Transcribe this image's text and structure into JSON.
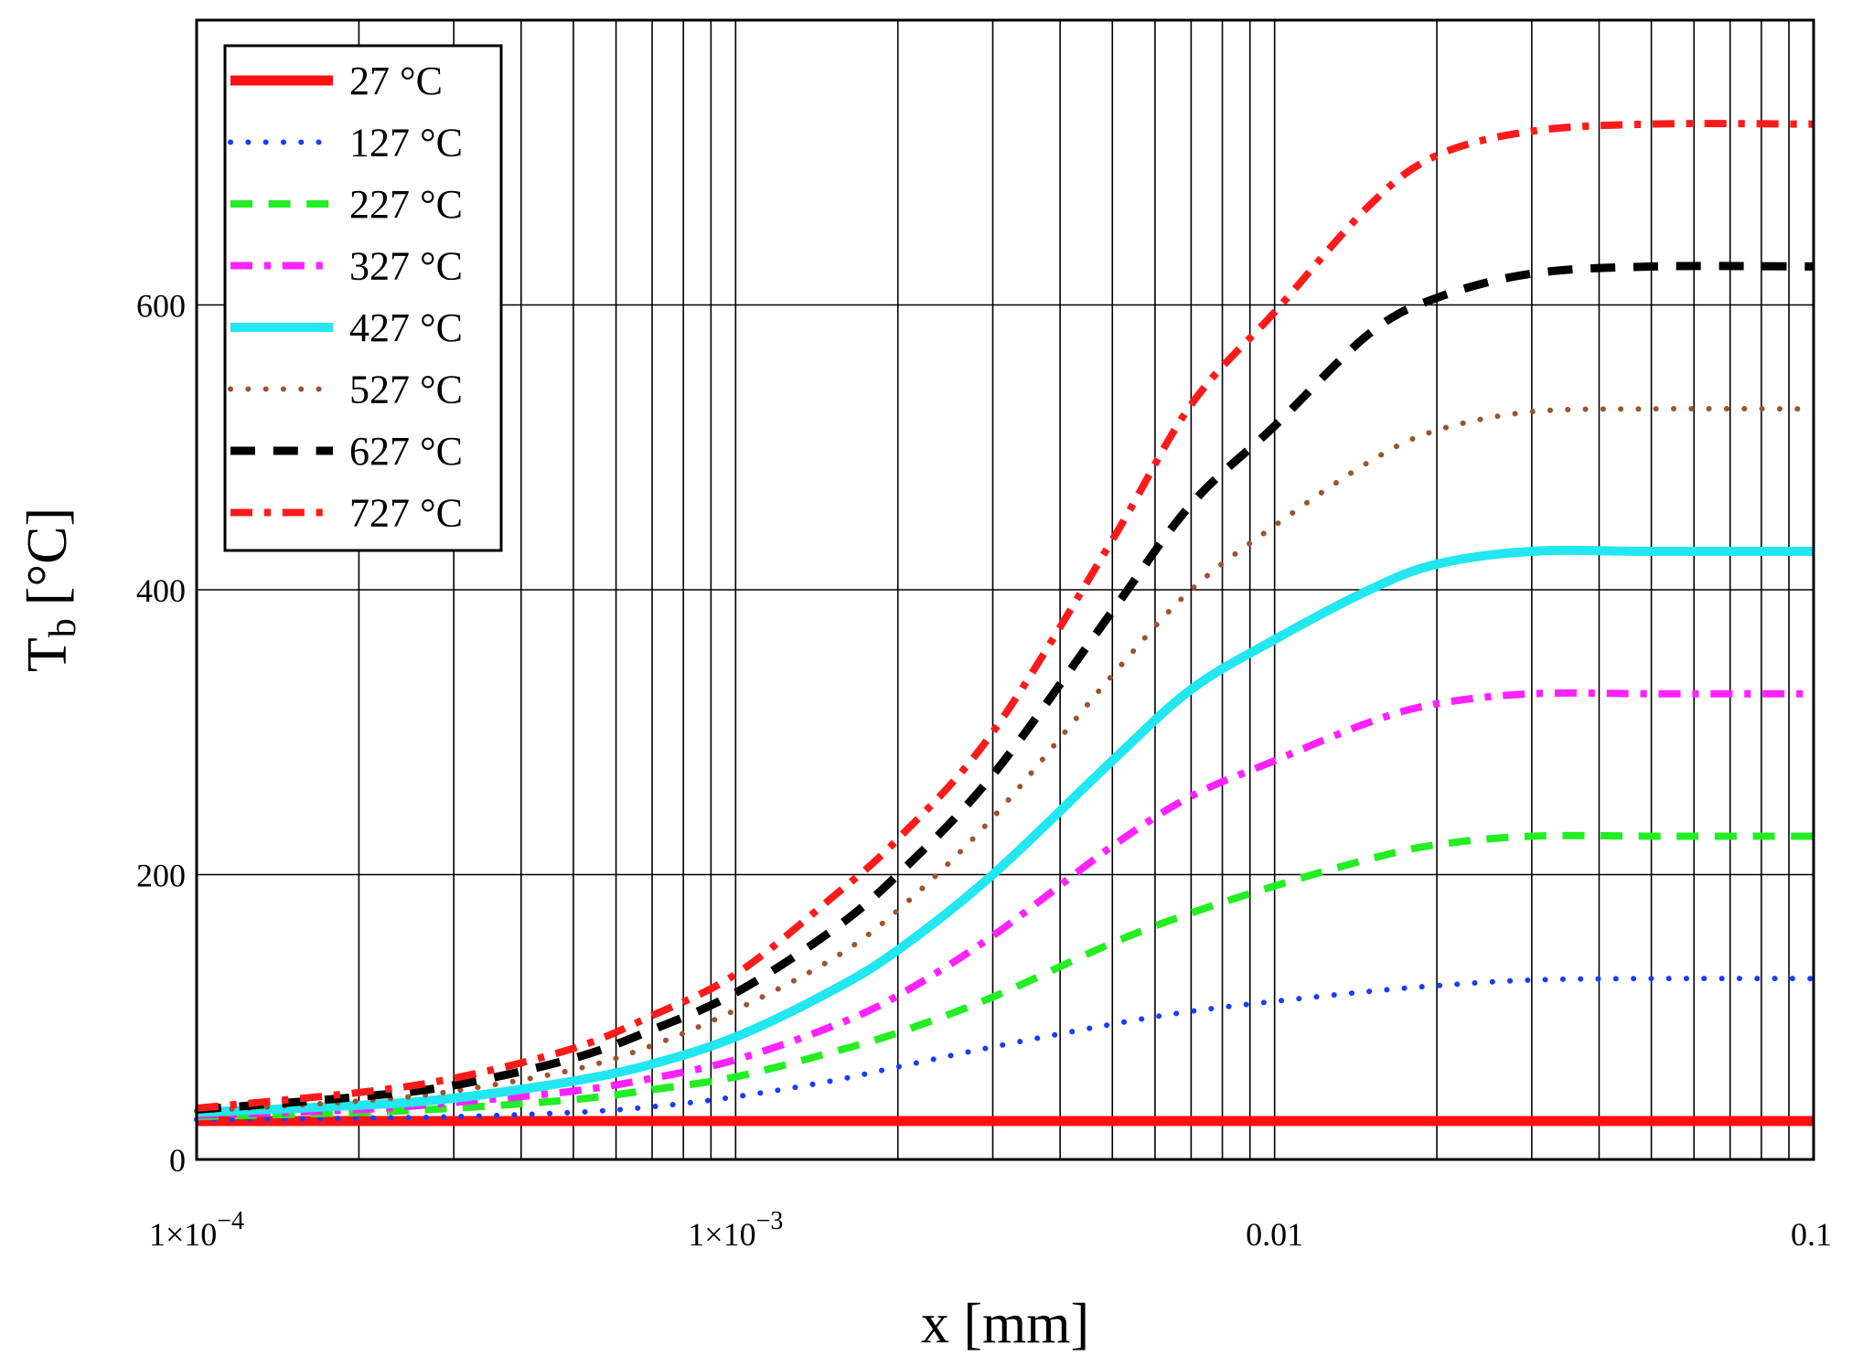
{
  "chart_data": {
    "type": "line",
    "title": "",
    "xlabel": "x [mm]",
    "ylabel": "T",
    "ylabel_subscript": "b",
    "ylabel_unit": "[°C]",
    "x_scale": "log",
    "xlim": [
      0.0001,
      0.1
    ],
    "ylim": [
      0,
      800
    ],
    "x_ticks": [
      {
        "value": 0.0001,
        "base": "1×10",
        "exp": "−4"
      },
      {
        "value": 0.001,
        "base": "1×10",
        "exp": "−3"
      },
      {
        "value": 0.01,
        "base": "0.01",
        "exp": ""
      },
      {
        "value": 0.1,
        "base": "0.1",
        "exp": ""
      }
    ],
    "y_ticks": [
      0,
      200,
      400,
      600
    ],
    "grid": true,
    "legend_position": "top-left",
    "x": [
      0.0001,
      0.0002,
      0.0003,
      0.0005,
      0.0007,
      0.001,
      0.0015,
      0.002,
      0.003,
      0.005,
      0.007,
      0.01,
      0.015,
      0.02,
      0.03,
      0.05,
      0.1
    ],
    "series": [
      {
        "name": "27 °C",
        "color": "#ff1010",
        "style": "solid",
        "width": 11,
        "values": [
          27,
          27,
          27,
          27,
          27,
          27,
          27,
          27,
          27,
          27,
          27,
          27,
          27,
          27,
          27,
          27,
          27
        ]
      },
      {
        "name": "127 °C",
        "color": "#1a3cff",
        "style": "dotted",
        "width": 6,
        "values": [
          28,
          29,
          30,
          33,
          37,
          44,
          55,
          65,
          79,
          95,
          104,
          111,
          118,
          122,
          126,
          127,
          127
        ]
      },
      {
        "name": "227 °C",
        "color": "#22ee22",
        "style": "dashed",
        "width": 8,
        "values": [
          30,
          33,
          36,
          42,
          49,
          58,
          75,
          89,
          114,
          152,
          173,
          192,
          211,
          221,
          227,
          227,
          227
        ]
      },
      {
        "name": "327 °C",
        "color": "#ff22ff",
        "style": "dashdot",
        "width": 8,
        "values": [
          31,
          35,
          40,
          48,
          57,
          70,
          93,
          115,
          157,
          220,
          255,
          280,
          307,
          320,
          327,
          327,
          327
        ]
      },
      {
        "name": "427 °C",
        "color": "#22e6f0",
        "style": "solid",
        "width": 10,
        "values": [
          33,
          38,
          43,
          55,
          67,
          86,
          118,
          147,
          200,
          280,
          330,
          365,
          400,
          418,
          427,
          427,
          427
        ]
      },
      {
        "name": "527 °C",
        "color": "#a0522d",
        "style": "dotted",
        "width": 6,
        "values": [
          34,
          41,
          48,
          63,
          80,
          105,
          140,
          175,
          240,
          340,
          400,
          445,
          490,
          512,
          525,
          527,
          527
        ]
      },
      {
        "name": "627 °C",
        "color": "#000000",
        "style": "dashed",
        "width": 9,
        "values": [
          35,
          44,
          52,
          71,
          91,
          117,
          160,
          200,
          270,
          385,
          460,
          515,
          580,
          605,
          622,
          627,
          627
        ]
      },
      {
        "name": "727 °C",
        "color": "#ff1a1a",
        "style": "dashdot",
        "width": 8,
        "values": [
          36,
          47,
          57,
          78,
          101,
          130,
          183,
          225,
          300,
          435,
          530,
          595,
          670,
          705,
          722,
          727,
          727
        ]
      }
    ]
  }
}
